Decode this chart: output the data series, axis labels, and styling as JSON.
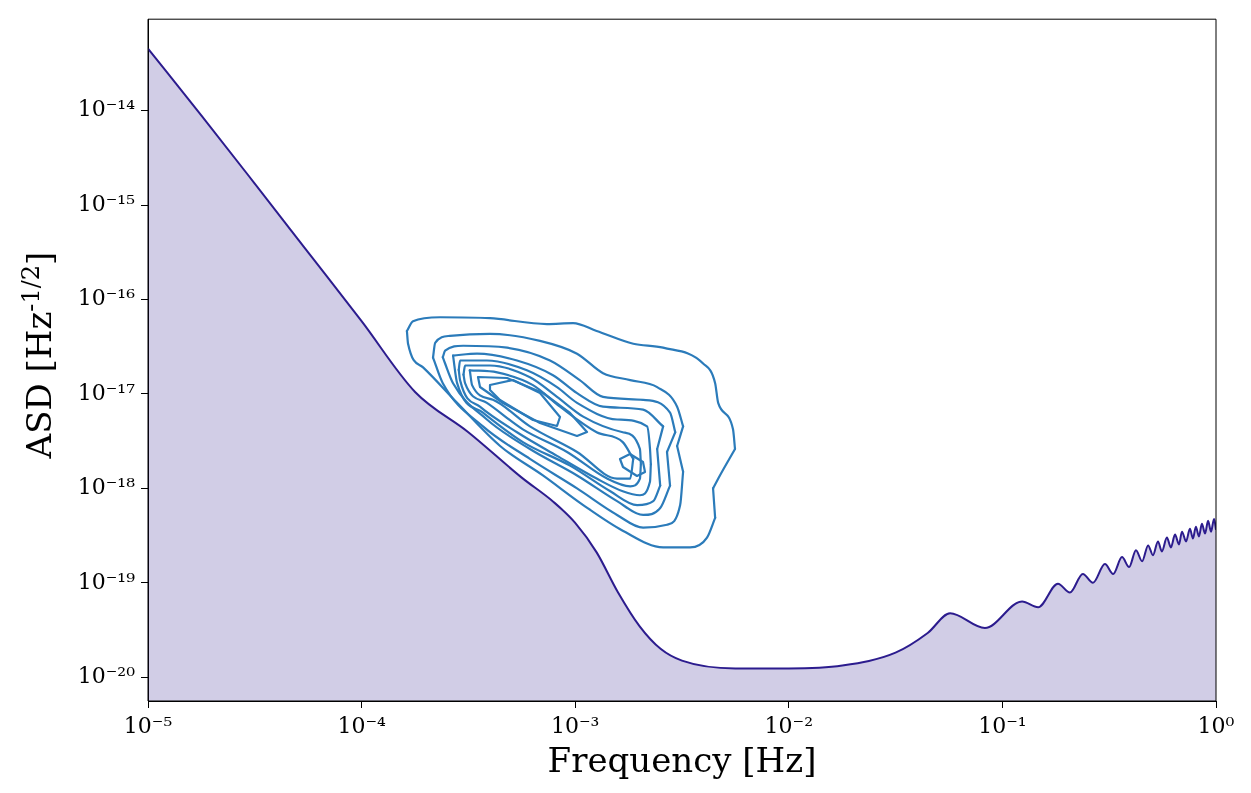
{
  "chart_data": {
    "type": "line",
    "xlabel": "Frequency [Hz]",
    "ylabel": "ASD [Hz$^{-1/2}$]",
    "log": "xy",
    "xlim": [
      1e-05,
      1
    ],
    "ylim": [
      5.6e-21,
      9.3e-14
    ],
    "xticks": [
      {
        "value": 1e-05,
        "label": "10⁻⁵"
      },
      {
        "value": 0.0001,
        "label": "10⁻⁴"
      },
      {
        "value": 0.001,
        "label": "10⁻³"
      },
      {
        "value": 0.01,
        "label": "10⁻²"
      },
      {
        "value": 0.1,
        "label": "10⁻¹"
      },
      {
        "value": 1,
        "label": "10⁰"
      }
    ],
    "yticks": [
      {
        "value": 1e-20,
        "label": "10⁻²⁰"
      },
      {
        "value": 1e-19,
        "label": "10⁻¹⁹"
      },
      {
        "value": 1e-18,
        "label": "10⁻¹⁸"
      },
      {
        "value": 1e-17,
        "label": "10⁻¹⁷"
      },
      {
        "value": 1e-16,
        "label": "10⁻¹⁶"
      },
      {
        "value": 1e-15,
        "label": "10⁻¹⁵"
      },
      {
        "value": 1e-14,
        "label": "10⁻¹⁴"
      }
    ],
    "series": [
      {
        "type": "area",
        "color": "#2c1c8e",
        "x": [
          1e-05,
          1.78e-05,
          3.16e-05,
          5.62e-05,
          0.0001,
          0.000178,
          0.000316,
          0.000562,
          0.000794,
          0.001,
          0.00126,
          0.00158,
          0.002,
          0.00251,
          0.00316,
          0.00562,
          0.01,
          0.0178,
          0.0316,
          0.0447,
          0.0569,
          0.0828,
          0.1236,
          0.147,
          0.182,
          0.207,
          0.238,
          0.2655,
          0.302,
          0.33,
          0.363,
          0.392,
          0.422,
          0.451,
          0.481,
          0.507,
          0.535,
          0.558,
          0.589,
          0.615,
          0.643,
          0.671,
          0.693,
          0.724,
          0.755,
          0.78,
          0.805,
          0.832,
          0.859,
          0.889,
          0.918,
          0.948,
          0.979,
          1
        ],
        "values": [
          4.53e-14,
          8.87e-15,
          1.69e-15,
          3.16e-16,
          5.9e-17,
          1.05e-17,
          3.93e-18,
          1.3e-18,
          7.14e-19,
          4.31e-19,
          2.1e-19,
          8.05e-20,
          3.48e-20,
          2e-20,
          1.5e-20,
          1.24e-20,
          1.24e-20,
          1.33e-20,
          1.82e-20,
          2.94e-20,
          4.75e-20,
          3.32e-20,
          6.34e-20,
          5.5e-20,
          9.77e-20,
          7.87e-20,
          1.24e-19,
          1e-19,
          1.58e-19,
          1.24e-19,
          1.87e-19,
          1.47e-19,
          2.21e-19,
          1.69e-19,
          2.49e-19,
          1.96e-19,
          2.74e-19,
          2.15e-19,
          3.01e-19,
          2.37e-19,
          3.24e-19,
          2.55e-19,
          3.48e-19,
          2.74e-19,
          3.74e-19,
          2.94e-19,
          3.93e-19,
          3.09e-19,
          4.22e-19,
          3.32e-19,
          4.53e-19,
          3.48e-19,
          4.75e-19,
          3.65e-19
        ]
      },
      {
        "color": "#2b7bba",
        "x": [
          0.000163,
          0.000174,
          0.000233,
          0.000399,
          0.000738,
          0.000977,
          0.00126,
          0.00187,
          0.00258,
          0.00397,
          0.00452,
          0.00467,
          0.00548,
          0.0056
        ],
        "values": [
          4.64e-17,
          5.9e-17,
          6.49e-17,
          6.34e-17,
          5.5e-17,
          5.62e-17,
          4.64e-17,
          3.4e-17,
          3.09e-17,
          2.1e-17,
          1.3e-17,
          8.05e-18,
          4.22e-18,
          2.61e-18
        ]
      },
      {
        "color": "#2b7bba",
        "x": [
          0.00442,
          0.00476,
          0.0056
        ],
        "values": [
          1e-18,
          1.37e-18,
          2.61e-18
        ]
      },
      {
        "color": "#2b7bba",
        "x": [
          0.00442,
          0.00452
        ],
        "values": [
          1e-18,
          4.87e-19
        ]
      },
      {
        "color": "#2b7bba",
        "x": [
          0.000163,
          0.000165,
          0.000194,
          0.00028,
          0.000445,
          0.000706,
          0.00109,
          0.00167,
          0.00258,
          0.00345,
          0.00414,
          0.00452
        ],
        "values": [
          4.64e-17,
          3.4e-17,
          1.91e-17,
          8.05e-18,
          2.81e-18,
          1.37e-18,
          6.65e-19,
          3.56e-19,
          2.37e-19,
          2.37e-19,
          3.01e-19,
          4.87e-19
        ]
      },
      {
        "color": "#2b7bba",
        "x": [
          0.000216,
          0.000221,
          0.000259,
          0.000399,
          0.000684,
          0.00102,
          0.00135,
          0.00181,
          0.00242,
          0.003,
          0.0032
        ],
        "values": [
          2.43e-17,
          3.48e-17,
          4.12e-17,
          4.32e-17,
          3.65e-17,
          2.67e-17,
          1.66e-17,
          1.4e-17,
          1.18e-17,
          7.33e-18,
          4.53e-18
        ]
      },
      {
        "color": "#2b7bba",
        "x": [
          0.003,
          0.0032
        ],
        "values": [
          2.81e-18,
          4.53e-18
        ]
      },
      {
        "color": "#2b7bba",
        "x": [
          0.003,
          0.0032
        ],
        "values": [
          2.81e-18,
          1.5e-18
        ]
      },
      {
        "color": "#2b7bba",
        "x": [
          0.000216,
          0.00024,
          0.00037,
          0.000614,
          0.00102,
          0.00157,
          0.00208,
          0.00269,
          0.0031,
          0.0032
        ],
        "values": [
          2.43e-17,
          1.3e-17,
          4.53e-18,
          2.05e-18,
          1e-18,
          5.23e-19,
          3.83e-19,
          4.12e-19,
          6.65e-19,
          1.5e-18
        ]
      },
      {
        "color": "#2b7bba",
        "x": [
          0.00024,
          0.000246,
          0.000299,
          0.00048,
          0.000762,
          0.00105,
          0.00135,
          0.00208,
          0.00278,
          0.00294
        ],
        "values": [
          2.45e-17,
          2.87e-17,
          3.24e-17,
          3.09e-17,
          2.26e-17,
          1.4e-17,
          9.31e-18,
          8.66e-18,
          6.34e-18,
          3.93e-18
        ]
      },
      {
        "color": "#2b7bba",
        "x": [
          0.00269,
          0.00294
        ],
        "values": [
          2.43e-18,
          3.93e-18
        ]
      },
      {
        "color": "#2b7bba",
        "x": [
          0.00269,
          0.00278
        ],
        "values": [
          2.43e-18,
          1.07e-18
        ]
      },
      {
        "color": "#2b7bba",
        "x": [
          0.00024,
          0.000246,
          0.000268,
          0.000386,
          0.000614,
          0.00102,
          0.00157,
          0.00208,
          0.0025,
          0.00278
        ],
        "values": [
          2.45e-17,
          2.1e-17,
          1.3e-17,
          5.36e-18,
          2.61e-18,
          1.37e-18,
          7.33e-19,
          5.23e-19,
          6.19e-19,
          1.07e-18
        ]
      },
      {
        "color": "#2b7bba",
        "x": [
          0.000268,
          0.000347,
          0.000534,
          0.000787,
          0.00102,
          0.00135,
          0.00208,
          0.00258
        ],
        "values": [
          2.55e-17,
          2.67e-17,
          2.26e-17,
          1.58e-17,
          1.02e-17,
          7.33e-18,
          6.81e-18,
          4.53e-18
        ]
      },
      {
        "color": "#2b7bba",
        "x": [
          0.00242,
          0.00258
        ],
        "values": [
          2.61e-18,
          4.53e-18
        ]
      },
      {
        "color": "#2b7bba",
        "x": [
          0.00242,
          0.0025
        ],
        "values": [
          2.61e-18,
          1.07e-18
        ]
      },
      {
        "color": "#2b7bba",
        "x": [
          0.000268,
          0.00028,
          0.00037,
          0.000569,
          0.000946,
          0.00146,
          0.00195,
          0.00232,
          0.0025
        ],
        "values": [
          2.55e-17,
          1.3e-17,
          6.34e-18,
          3.09e-18,
          1.74e-18,
          9.31e-19,
          6.65e-19,
          7.33e-19,
          1.07e-18
        ]
      },
      {
        "color": "#2b7bba",
        "x": [
          0.000285,
          0.000289,
          0.000386,
          0.000594,
          0.000822,
          0.00102,
          0.00157,
          0.00217,
          0.00224,
          0.00226
        ],
        "values": [
          1.8e-17,
          2.26e-17,
          2.26e-17,
          1.78e-17,
          1.18e-17,
          8.05e-18,
          5.36e-18,
          4.53e-18,
          2.61e-18,
          1.8e-18
        ]
      },
      {
        "color": "#2b7bba",
        "x": [
          0.000285,
          0.000289,
          0.000358,
          0.000534,
          0.000822,
          0.00126,
          0.00167,
          0.00201,
          0.00224,
          0.00226
        ],
        "values": [
          1.8e-17,
          1.4e-17,
          7.33e-18,
          3.93e-18,
          2.21e-18,
          1.27e-18,
          9.31e-19,
          8.45e-19,
          1.18e-18,
          1.8e-18
        ]
      },
      {
        "color": "#2b7bba",
        "x": [
          0.0003,
          0.000305,
          0.000399,
          0.000614,
          0.000822,
          0.00109,
          0.00167,
          0.00201,
          0.00203
        ],
        "values": [
          1.6e-17,
          2e-17,
          2e-17,
          1.5e-17,
          9.31e-18,
          5.75e-18,
          3.93e-18,
          2.61e-18,
          1.8e-18
        ]
      },
      {
        "color": "#2b7bba",
        "x": [
          0.0003,
          0.000305,
          0.000386,
          0.000569,
          0.000916,
          0.00141,
          0.00181,
          0.00201,
          0.00203
        ],
        "values": [
          1.6e-17,
          1.3e-17,
          8.05e-18,
          4.22e-18,
          2.43e-18,
          1.27e-18,
          1.05e-18,
          1.27e-18,
          1.8e-18
        ]
      },
      {
        "color": "#2b7bba",
        "x": [
          0.000321,
          0.000431,
          0.000634,
          0.000849,
          0.00126,
          0.00167,
          0.00187
        ],
        "values": [
          1.78e-17,
          1.69e-17,
          1.24e-17,
          7.33e-18,
          3.93e-18,
          3.09e-18,
          2.05e-18
        ]
      },
      {
        "color": "#2b7bba",
        "x": [
          0.000321,
          0.000329,
          0.000412,
          0.000614,
          0.00102,
          0.00157,
          0.00181,
          0.00187
        ],
        "values": [
          1.78e-17,
          1.24e-17,
          8.66e-18,
          4.53e-18,
          2.43e-18,
          1.27e-18,
          1.27e-18,
          2.05e-18
        ]
      }
    ]
  }
}
